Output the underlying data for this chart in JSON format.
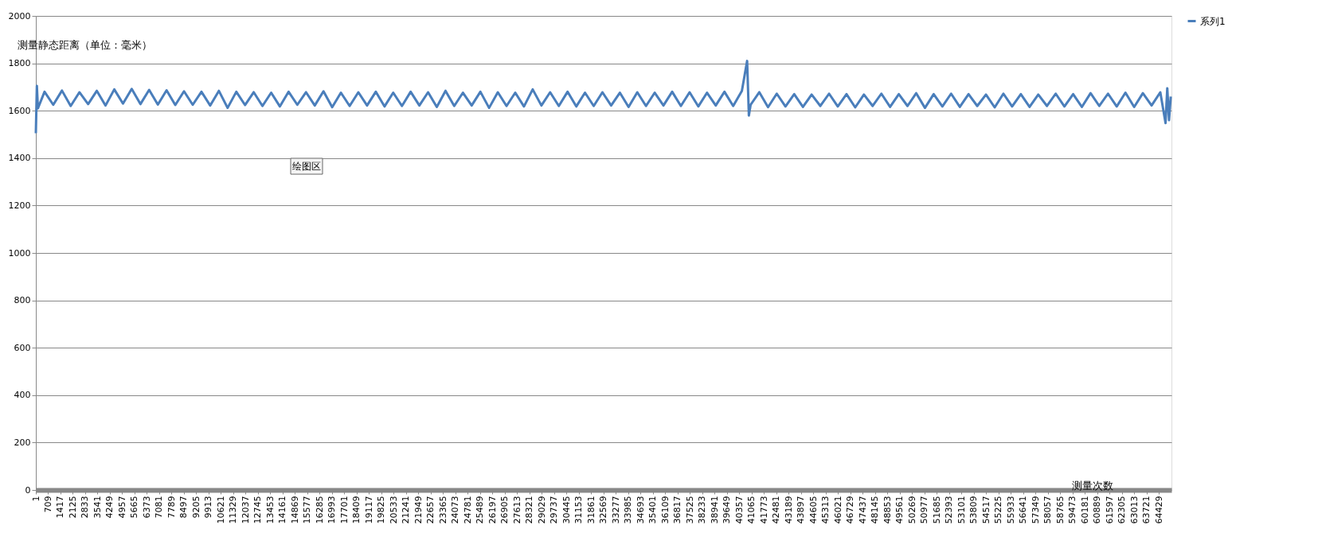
{
  "chart_data": {
    "type": "line",
    "title": "测量静态距离（单位：毫米）",
    "xlabel": "测量次数",
    "annotations": [
      "绘图区"
    ],
    "xlim": [
      1,
      65140
    ],
    "xticks": [
      1,
      709,
      1417,
      2125,
      2833,
      3541,
      4249,
      4957,
      5665,
      6373,
      7081,
      7789,
      8497,
      9205,
      9913,
      10621,
      11329,
      12037,
      12745,
      13453,
      14161,
      14869,
      15577,
      16285,
      16993,
      17701,
      18409,
      19117,
      19825,
      20533,
      21241,
      21949,
      22657,
      23365,
      24073,
      24781,
      25489,
      26197,
      26905,
      27613,
      28321,
      29029,
      29737,
      30445,
      31153,
      31861,
      32569,
      33277,
      33985,
      34693,
      35401,
      36109,
      36817,
      37525,
      38233,
      38941,
      39649,
      40357,
      41065,
      41773,
      42481,
      43189,
      43897,
      44605,
      45313,
      46021,
      46729,
      47437,
      48145,
      48853,
      49561,
      50269,
      50977,
      51685,
      52393,
      53101,
      53809,
      54517,
      55225,
      55933,
      56641,
      57349,
      58057,
      58765,
      59473,
      60181,
      60889,
      61597,
      62305,
      63013,
      63721,
      64429
    ],
    "ylim": [
      0,
      2000
    ],
    "yticks": [
      0,
      200,
      400,
      600,
      800,
      1000,
      1200,
      1400,
      1600,
      1800,
      2000
    ],
    "grid": "y",
    "legend": "right",
    "marker": "none",
    "line_style": "solid",
    "series": [
      {
        "name": "系列1",
        "color": "#4a7ebb",
        "x": [
          1,
          60,
          120,
          500,
          1000,
          1500,
          2000,
          2500,
          3000,
          3500,
          4000,
          4500,
          5000,
          5500,
          6000,
          6500,
          7000,
          7500,
          8000,
          8500,
          9000,
          9500,
          10000,
          10500,
          11000,
          11500,
          12000,
          12500,
          13000,
          13500,
          14000,
          14500,
          15000,
          15500,
          16000,
          16500,
          17000,
          17500,
          18000,
          18500,
          19000,
          19500,
          20000,
          20500,
          21000,
          21500,
          22000,
          22500,
          23000,
          23500,
          24000,
          24500,
          25000,
          25500,
          26000,
          26500,
          27000,
          27500,
          28000,
          28500,
          29000,
          29500,
          30000,
          30500,
          31000,
          31500,
          32000,
          32500,
          33000,
          33500,
          34000,
          34500,
          35000,
          35500,
          36000,
          36500,
          37000,
          37500,
          38000,
          38500,
          39000,
          39500,
          40000,
          40500,
          40800,
          40900,
          41000,
          41500,
          42000,
          42500,
          43000,
          43500,
          44000,
          44500,
          45000,
          45500,
          46000,
          46500,
          47000,
          47500,
          48000,
          48500,
          49000,
          49500,
          50000,
          50500,
          51000,
          51500,
          52000,
          52500,
          53000,
          53500,
          54000,
          54500,
          55000,
          55500,
          56000,
          56500,
          57000,
          57500,
          58000,
          58500,
          59000,
          59500,
          60000,
          60500,
          61000,
          61500,
          62000,
          62500,
          63000,
          63500,
          64000,
          64500,
          64800,
          64900,
          65000,
          65100
        ],
        "values": [
          1505,
          1705,
          1610,
          1680,
          1625,
          1685,
          1620,
          1678,
          1628,
          1684,
          1622,
          1690,
          1630,
          1692,
          1628,
          1688,
          1626,
          1686,
          1624,
          1682,
          1625,
          1680,
          1622,
          1684,
          1612,
          1680,
          1624,
          1678,
          1620,
          1676,
          1618,
          1680,
          1625,
          1678,
          1622,
          1682,
          1615,
          1676,
          1620,
          1678,
          1622,
          1680,
          1618,
          1676,
          1620,
          1680,
          1622,
          1678,
          1616,
          1684,
          1620,
          1676,
          1622,
          1680,
          1612,
          1678,
          1620,
          1676,
          1618,
          1690,
          1622,
          1678,
          1620,
          1680,
          1618,
          1676,
          1620,
          1678,
          1622,
          1676,
          1616,
          1678,
          1620,
          1676,
          1622,
          1680,
          1620,
          1678,
          1618,
          1676,
          1622,
          1680,
          1620,
          1684,
          1810,
          1580,
          1625,
          1678,
          1615,
          1672,
          1618,
          1670,
          1616,
          1668,
          1620,
          1672,
          1618,
          1670,
          1614,
          1668,
          1620,
          1672,
          1616,
          1670,
          1620,
          1674,
          1612,
          1670,
          1618,
          1672,
          1616,
          1670,
          1620,
          1668,
          1614,
          1672,
          1618,
          1670,
          1616,
          1668,
          1620,
          1672,
          1618,
          1670,
          1616,
          1674,
          1620,
          1672,
          1618,
          1676,
          1616,
          1674,
          1622,
          1678,
          1548,
          1695,
          1560,
          1660
        ]
      }
    ]
  }
}
